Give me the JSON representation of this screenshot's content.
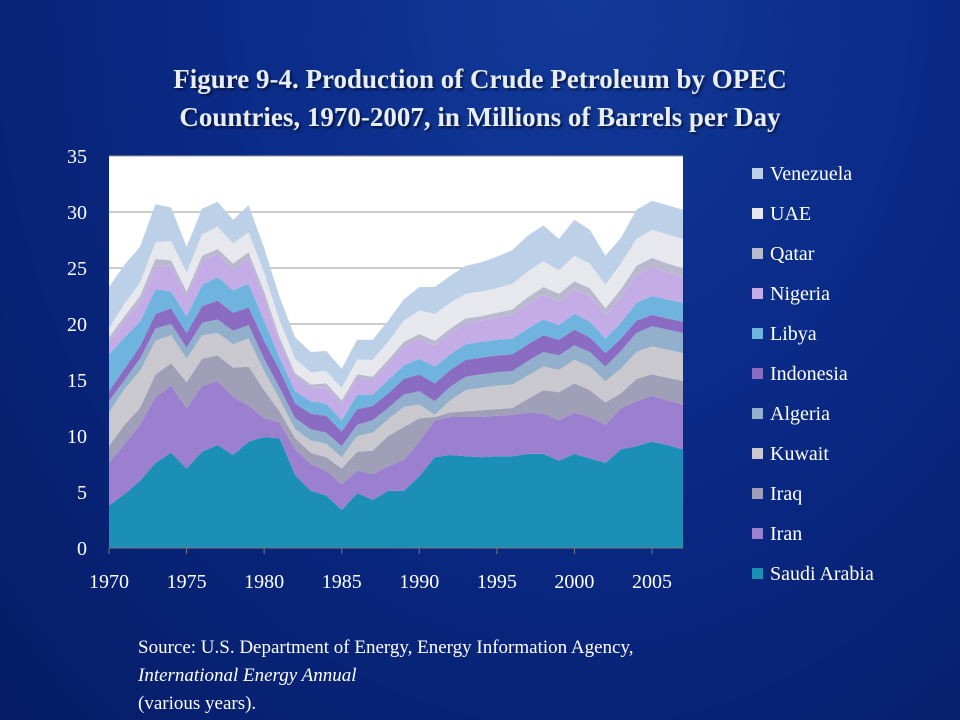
{
  "title_lines": [
    "Figure 9-4. Production of Crude Petroleum by OPEC",
    "Countries, 1970-2007, in Millions of Barrels per Day"
  ],
  "source": {
    "line1": "Source: U.S. Department of Energy, Energy Information Agency,",
    "line2_italic": "International Energy Annual",
    "line2_rest": " (various years)."
  },
  "chart_data": {
    "type": "area",
    "stacked": true,
    "title": "",
    "xlabel": "",
    "ylabel": "",
    "ylim": [
      0,
      35
    ],
    "yticks": [
      0,
      5,
      10,
      15,
      20,
      25,
      30,
      35
    ],
    "xlim": [
      1970,
      2007
    ],
    "xticks": [
      1970,
      1975,
      1980,
      1985,
      1990,
      1995,
      2000,
      2005
    ],
    "grid": true,
    "legend_position": "right",
    "x": [
      1970,
      1971,
      1972,
      1973,
      1974,
      1975,
      1976,
      1977,
      1978,
      1979,
      1980,
      1981,
      1982,
      1983,
      1984,
      1985,
      1986,
      1987,
      1988,
      1989,
      1990,
      1991,
      1992,
      1993,
      1994,
      1995,
      1996,
      1997,
      1998,
      1999,
      2000,
      2001,
      2002,
      2003,
      2004,
      2005,
      2006,
      2007
    ],
    "series": [
      {
        "name": "Saudi Arabia",
        "color": "#1b8fb5",
        "values": [
          3.8,
          4.8,
          6.0,
          7.6,
          8.5,
          7.1,
          8.6,
          9.2,
          8.3,
          9.5,
          9.9,
          9.8,
          6.5,
          5.1,
          4.7,
          3.4,
          4.9,
          4.3,
          5.1,
          5.1,
          6.4,
          8.1,
          8.3,
          8.2,
          8.1,
          8.2,
          8.2,
          8.4,
          8.4,
          7.8,
          8.4,
          8.0,
          7.6,
          8.8,
          9.1,
          9.5,
          9.2,
          8.8
        ]
      },
      {
        "name": "Iran",
        "color": "#9c80d0",
        "values": [
          3.8,
          4.5,
          5.0,
          5.9,
          6.0,
          5.4,
          5.9,
          5.7,
          5.2,
          3.2,
          1.7,
          1.4,
          2.3,
          2.4,
          2.2,
          2.3,
          2.0,
          2.3,
          2.2,
          2.8,
          3.1,
          3.3,
          3.4,
          3.5,
          3.6,
          3.6,
          3.7,
          3.7,
          3.6,
          3.6,
          3.7,
          3.7,
          3.4,
          3.7,
          4.0,
          4.1,
          4.0,
          4.0
        ]
      },
      {
        "name": "Iraq",
        "color": "#9f9fb7",
        "values": [
          1.5,
          1.7,
          1.5,
          2.0,
          2.0,
          2.3,
          2.4,
          2.3,
          2.6,
          3.5,
          2.5,
          1.0,
          1.0,
          1.0,
          1.2,
          1.4,
          1.7,
          2.1,
          2.7,
          2.9,
          2.1,
          0.3,
          0.4,
          0.5,
          0.6,
          0.6,
          0.6,
          1.2,
          2.1,
          2.5,
          2.6,
          2.4,
          2.0,
          1.3,
          2.0,
          1.9,
          2.0,
          2.1
        ]
      },
      {
        "name": "Kuwait",
        "color": "#c8c8ce",
        "values": [
          3.0,
          3.2,
          3.3,
          3.0,
          2.5,
          2.1,
          2.1,
          2.0,
          2.1,
          2.5,
          1.7,
          1.1,
          0.8,
          1.1,
          1.2,
          1.0,
          1.4,
          1.6,
          1.5,
          1.8,
          1.2,
          0.2,
          1.1,
          1.9,
          2.0,
          2.1,
          2.1,
          2.1,
          2.1,
          2.0,
          2.1,
          2.1,
          1.9,
          2.2,
          2.4,
          2.5,
          2.5,
          2.5
        ]
      },
      {
        "name": "Algeria",
        "color": "#92b0cc",
        "values": [
          1.0,
          0.8,
          1.1,
          1.1,
          1.0,
          1.0,
          1.1,
          1.2,
          1.2,
          1.2,
          1.1,
          1.0,
          1.0,
          1.0,
          1.0,
          1.0,
          1.0,
          1.1,
          1.0,
          1.1,
          1.2,
          1.2,
          1.2,
          1.2,
          1.2,
          1.2,
          1.2,
          1.3,
          1.3,
          1.3,
          1.3,
          1.3,
          1.3,
          1.6,
          1.7,
          1.8,
          1.8,
          1.8
        ]
      },
      {
        "name": "Indonesia",
        "color": "#8a6cc3",
        "values": [
          0.9,
          1.0,
          1.1,
          1.3,
          1.4,
          1.3,
          1.5,
          1.7,
          1.6,
          1.6,
          1.6,
          1.6,
          1.3,
          1.4,
          1.5,
          1.3,
          1.4,
          1.3,
          1.3,
          1.4,
          1.5,
          1.6,
          1.5,
          1.5,
          1.5,
          1.5,
          1.5,
          1.5,
          1.5,
          1.4,
          1.4,
          1.3,
          1.2,
          1.1,
          1.1,
          1.0,
          1.0,
          1.0
        ]
      },
      {
        "name": "Libya",
        "color": "#6fb4df",
        "values": [
          3.3,
          2.8,
          2.2,
          2.2,
          1.5,
          1.5,
          1.9,
          2.1,
          2.0,
          2.1,
          1.8,
          1.1,
          1.1,
          1.1,
          1.1,
          1.0,
          1.3,
          1.0,
          1.2,
          1.2,
          1.4,
          1.5,
          1.4,
          1.4,
          1.4,
          1.4,
          1.4,
          1.4,
          1.4,
          1.3,
          1.4,
          1.4,
          1.3,
          1.4,
          1.6,
          1.7,
          1.7,
          1.7
        ]
      },
      {
        "name": "Nigeria",
        "color": "#c4ade6",
        "values": [
          1.1,
          1.5,
          1.8,
          2.1,
          2.3,
          1.8,
          2.1,
          2.1,
          1.9,
          2.3,
          2.1,
          1.4,
          1.3,
          1.2,
          1.4,
          1.5,
          1.5,
          1.3,
          1.5,
          1.7,
          1.8,
          1.9,
          1.9,
          1.9,
          1.9,
          2.0,
          2.1,
          2.2,
          2.2,
          2.1,
          2.2,
          2.3,
          2.1,
          2.3,
          2.5,
          2.6,
          2.4,
          2.3
        ]
      },
      {
        "name": "Qatar",
        "color": "#b8b9cc",
        "values": [
          0.4,
          0.4,
          0.5,
          0.6,
          0.5,
          0.4,
          0.5,
          0.4,
          0.5,
          0.5,
          0.5,
          0.4,
          0.3,
          0.3,
          0.4,
          0.3,
          0.3,
          0.3,
          0.3,
          0.4,
          0.4,
          0.4,
          0.4,
          0.4,
          0.4,
          0.4,
          0.5,
          0.6,
          0.7,
          0.7,
          0.7,
          0.7,
          0.6,
          0.7,
          0.8,
          0.8,
          0.8,
          0.8
        ]
      },
      {
        "name": "UAE",
        "color": "#e6e8ee",
        "values": [
          0.8,
          1.1,
          1.2,
          1.5,
          1.7,
          1.7,
          1.9,
          2.0,
          1.8,
          1.8,
          1.7,
          1.5,
          1.3,
          1.1,
          1.1,
          1.1,
          1.3,
          1.5,
          1.6,
          1.9,
          2.1,
          2.4,
          2.3,
          2.2,
          2.2,
          2.2,
          2.3,
          2.3,
          2.3,
          2.1,
          2.3,
          2.2,
          2.1,
          2.3,
          2.4,
          2.5,
          2.6,
          2.6
        ]
      },
      {
        "name": "Venezuela",
        "color": "#bcd1e8",
        "values": [
          3.7,
          3.5,
          3.2,
          3.4,
          3.0,
          2.3,
          2.3,
          2.2,
          2.1,
          2.4,
          2.2,
          2.1,
          1.9,
          1.8,
          1.8,
          1.7,
          1.8,
          1.8,
          1.9,
          1.9,
          2.1,
          2.4,
          2.4,
          2.5,
          2.6,
          2.8,
          3.0,
          3.2,
          3.2,
          2.8,
          3.2,
          3.0,
          2.6,
          2.3,
          2.6,
          2.6,
          2.6,
          2.6
        ]
      }
    ]
  }
}
